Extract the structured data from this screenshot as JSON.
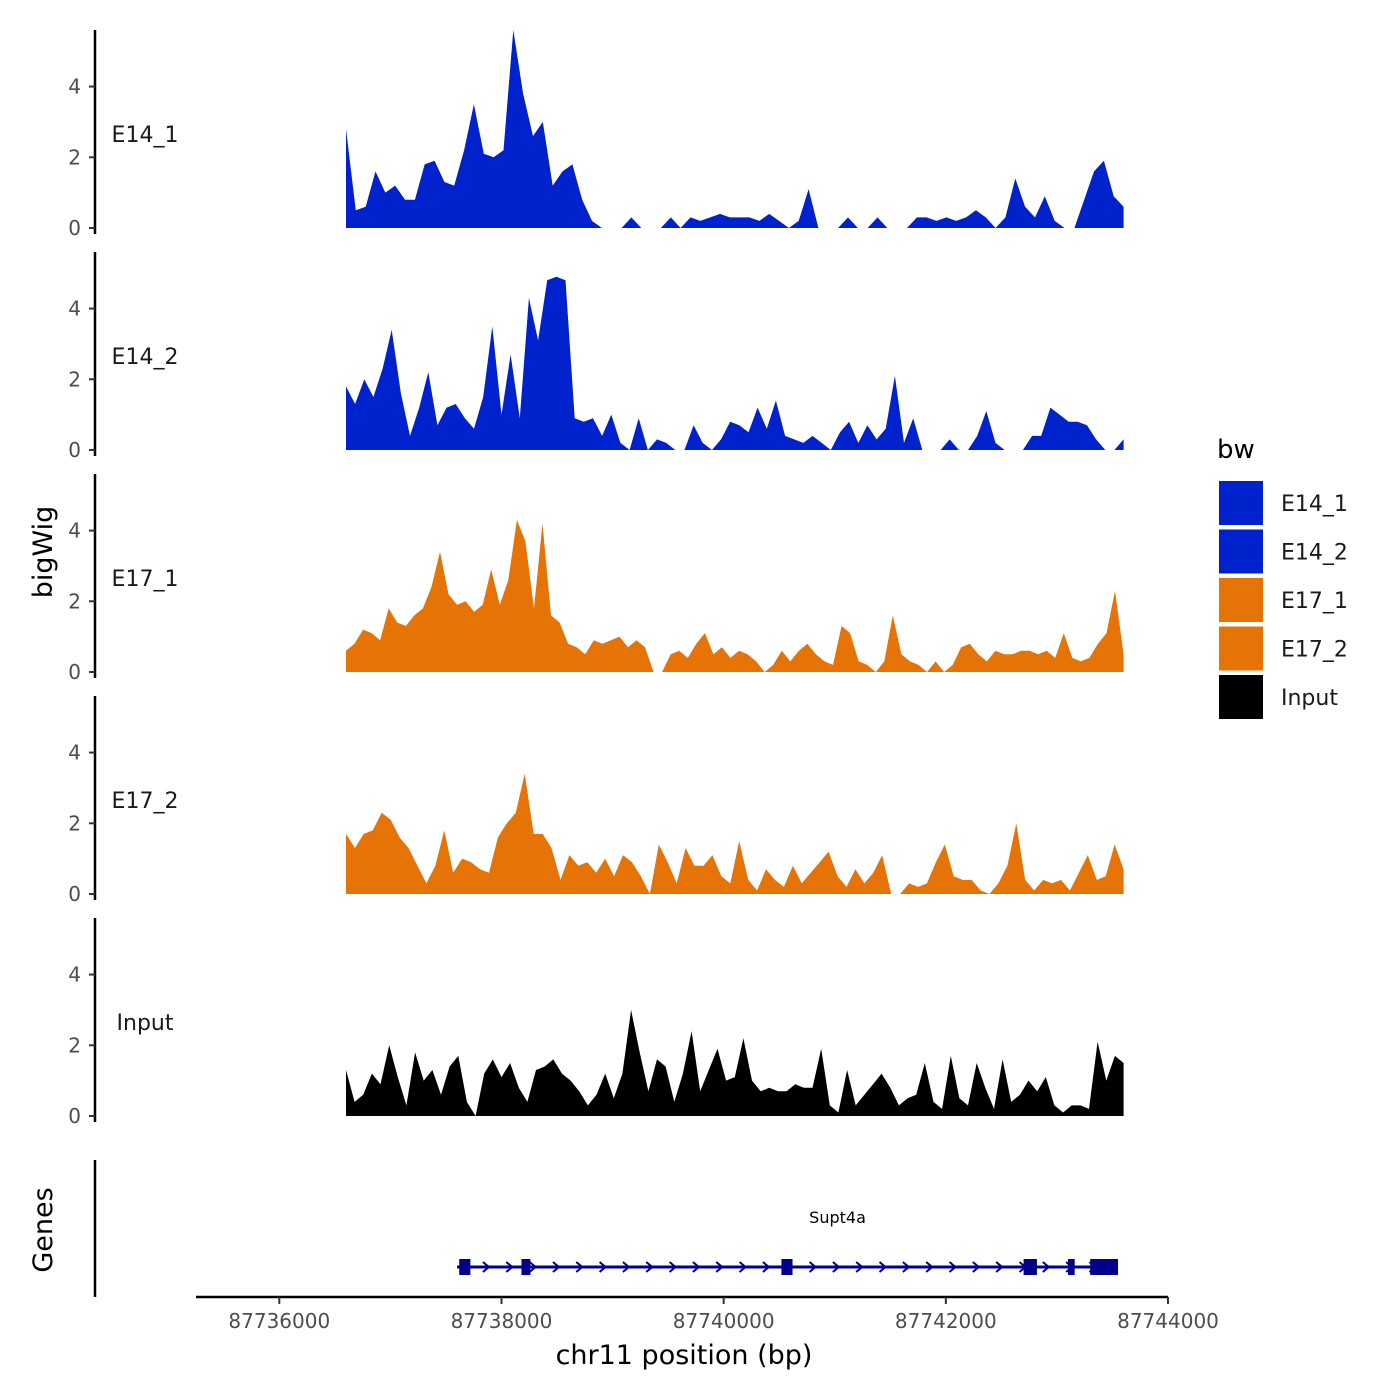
{
  "chart_data": {
    "type": "area",
    "chromosome": "chr11",
    "x_axis": {
      "title": "chr11 position (bp)",
      "range": [
        87735250,
        87744000
      ],
      "ticks": [
        87736000,
        87738000,
        87740000,
        87742000,
        87744000
      ],
      "tick_labels": [
        "87736000",
        "87738000",
        "87740000",
        "87742000",
        "87744000"
      ]
    },
    "y_axis": {
      "title": "bigWig",
      "range": [
        0,
        5.6
      ],
      "ticks": [
        0,
        2,
        4
      ],
      "tick_labels": [
        "0",
        "2",
        "4"
      ]
    },
    "colors": {
      "E14": "#0022cc",
      "E17": "#e67306",
      "Input": "#000000",
      "gene": "#00008b"
    },
    "x_start": 87736600,
    "x_end": 87743600,
    "tracks": [
      {
        "name": "E14_1",
        "color": "#0022cc",
        "values": [
          2.8,
          0.5,
          0.6,
          1.6,
          1.0,
          1.2,
          0.8,
          0.8,
          1.8,
          1.9,
          1.3,
          1.2,
          2.2,
          3.5,
          2.1,
          2.0,
          2.2,
          5.6,
          3.8,
          2.6,
          3.0,
          1.2,
          1.6,
          1.8,
          0.8,
          0.2,
          0,
          0,
          0,
          0.3,
          0,
          0,
          0,
          0.3,
          0,
          0.3,
          0.2,
          0.3,
          0.4,
          0.3,
          0.3,
          0.3,
          0.2,
          0.4,
          0.2,
          0,
          0.2,
          1.1,
          0,
          0,
          0,
          0.3,
          0,
          0,
          0.3,
          0,
          0,
          0,
          0.3,
          0.3,
          0.2,
          0.3,
          0.2,
          0.3,
          0.5,
          0.3,
          0,
          0.3,
          1.4,
          0.6,
          0.3,
          0.9,
          0.2,
          0,
          0,
          0.8,
          1.6,
          1.9,
          0.9,
          0.6
        ]
      },
      {
        "name": "E14_2",
        "color": "#0022cc",
        "values": [
          1.8,
          1.3,
          2.0,
          1.5,
          2.3,
          3.4,
          1.6,
          0.4,
          1.2,
          2.2,
          0.7,
          1.2,
          1.3,
          0.9,
          0.6,
          1.5,
          3.5,
          1.0,
          2.7,
          0.9,
          4.3,
          3.1,
          4.8,
          4.9,
          4.8,
          0.9,
          0.8,
          0.9,
          0.4,
          1.0,
          0.2,
          0,
          0.9,
          0,
          0.3,
          0.2,
          0,
          0,
          0.7,
          0.2,
          0,
          0.3,
          0.8,
          0.7,
          0.5,
          1.2,
          0.6,
          1.4,
          0.4,
          0.3,
          0.2,
          0.4,
          0.2,
          0,
          0.5,
          0.8,
          0.2,
          0.7,
          0.3,
          0.6,
          2.1,
          0.2,
          0.9,
          0,
          0,
          0,
          0.3,
          0,
          0,
          0.4,
          1.1,
          0.2,
          0,
          0,
          0,
          0.4,
          0.4,
          1.2,
          1.0,
          0.8,
          0.8,
          0.7,
          0.3,
          0,
          0,
          0.3
        ]
      },
      {
        "name": "E17_1",
        "color": "#e67306",
        "values": [
          0.6,
          0.8,
          1.2,
          1.1,
          0.9,
          1.8,
          1.4,
          1.3,
          1.6,
          1.8,
          2.4,
          3.4,
          2.2,
          1.9,
          2.0,
          1.7,
          1.9,
          2.9,
          1.9,
          2.6,
          4.3,
          3.7,
          1.8,
          4.2,
          1.6,
          1.4,
          0.8,
          0.7,
          0.5,
          0.9,
          0.8,
          0.9,
          1.0,
          0.7,
          0.9,
          0.7,
          0,
          0,
          0.5,
          0.6,
          0.4,
          0.8,
          1.1,
          0.5,
          0.7,
          0.4,
          0.6,
          0.5,
          0.3,
          0,
          0.2,
          0.6,
          0.3,
          0.6,
          0.8,
          0.5,
          0.3,
          0.2,
          1.3,
          1.1,
          0.3,
          0.2,
          0,
          0.3,
          1.6,
          0.5,
          0.3,
          0.2,
          0,
          0.3,
          0,
          0.2,
          0.7,
          0.8,
          0.5,
          0.3,
          0.6,
          0.5,
          0.5,
          0.6,
          0.6,
          0.5,
          0.6,
          0.4,
          1.1,
          0.4,
          0.3,
          0.4,
          0.8,
          1.1,
          2.3,
          0.5
        ]
      },
      {
        "name": "E17_2",
        "color": "#e67306",
        "values": [
          1.7,
          1.3,
          1.7,
          1.8,
          2.3,
          2.1,
          1.6,
          1.3,
          0.8,
          0.3,
          0.8,
          1.8,
          0.6,
          1.0,
          0.9,
          0.7,
          0.6,
          1.6,
          2.0,
          2.3,
          3.4,
          1.7,
          1.7,
          1.3,
          0.4,
          1.1,
          0.8,
          0.9,
          0.6,
          1.0,
          0.5,
          1.1,
          0.9,
          0.5,
          0,
          1.4,
          0.9,
          0.3,
          1.3,
          0.8,
          0.8,
          1.1,
          0.5,
          0.3,
          1.5,
          0.4,
          0.1,
          0.7,
          0.4,
          0.2,
          0.8,
          0.3,
          0.6,
          0.9,
          1.2,
          0.5,
          0.2,
          0.7,
          0.3,
          0.6,
          1.1,
          0,
          0,
          0.3,
          0.2,
          0.3,
          0.9,
          1.4,
          0.5,
          0.4,
          0.4,
          0.1,
          0,
          0.3,
          0.8,
          2.0,
          0.4,
          0.1,
          0.4,
          0.3,
          0.4,
          0.1,
          0.6,
          1.1,
          0.4,
          0.5,
          1.4,
          0.7
        ]
      },
      {
        "name": "Input",
        "color": "#000000",
        "values": [
          1.3,
          0.4,
          0.6,
          1.2,
          0.9,
          2.0,
          1.1,
          0.3,
          1.8,
          1.0,
          1.3,
          0.6,
          1.4,
          1.7,
          0.4,
          0,
          1.2,
          1.6,
          1.1,
          1.5,
          0.8,
          0.4,
          1.3,
          1.4,
          1.6,
          1.2,
          1.0,
          0.7,
          0.3,
          0.6,
          1.2,
          0.5,
          1.2,
          3.0,
          1.8,
          0.7,
          1.6,
          1.4,
          0.4,
          1.2,
          2.4,
          0.7,
          1.3,
          1.9,
          1.0,
          1.1,
          2.2,
          1.0,
          0.7,
          0.8,
          0.7,
          0.7,
          0.9,
          0.8,
          0.8,
          1.9,
          0.3,
          0.1,
          1.3,
          0.3,
          0.6,
          0.9,
          1.2,
          0.8,
          0.3,
          0.5,
          0.6,
          1.5,
          0.4,
          0.2,
          1.7,
          0.5,
          0.3,
          1.5,
          0.8,
          0.2,
          1.6,
          0.4,
          0.6,
          1.0,
          0.7,
          1.1,
          0.3,
          0.1,
          0.3,
          0.3,
          0.2,
          2.1,
          1.0,
          1.7,
          1.5
        ]
      }
    ],
    "genes_track": {
      "label": "Genes",
      "gene": {
        "name": "Supt4a",
        "strand": "+",
        "start": 87737600,
        "end": 87743550,
        "exons": [
          [
            87737620,
            87737720
          ],
          [
            87738180,
            87738260
          ],
          [
            87740520,
            87740620
          ],
          [
            87742700,
            87742820
          ],
          [
            87743100,
            87743160
          ],
          [
            87743300,
            87743550
          ]
        ]
      }
    },
    "legend": {
      "title": "bw",
      "position": "right",
      "items": [
        {
          "label": "E14_1",
          "color": "#0022cc"
        },
        {
          "label": "E14_2",
          "color": "#0022cc"
        },
        {
          "label": "E17_1",
          "color": "#e67306"
        },
        {
          "label": "E17_2",
          "color": "#e67306"
        },
        {
          "label": "Input",
          "color": "#000000"
        }
      ]
    }
  }
}
